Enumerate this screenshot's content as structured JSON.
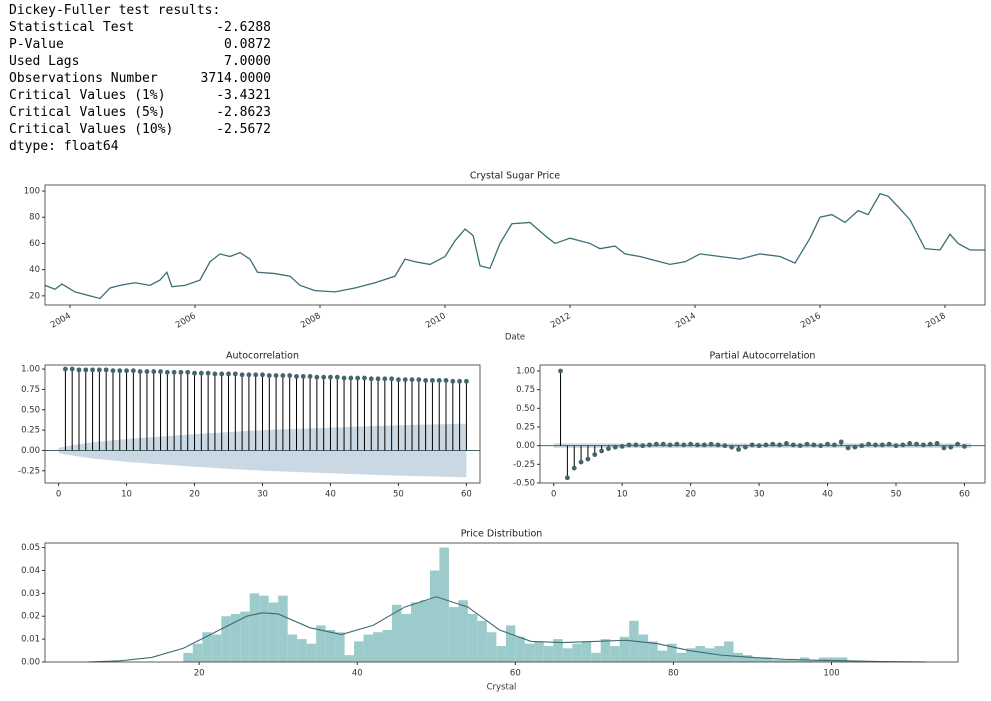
{
  "output": {
    "header": "Dickey-Fuller test results:",
    "rows": [
      [
        "Statistical Test",
        "-2.6288"
      ],
      [
        "P-Value",
        "0.0872"
      ],
      [
        "Used Lags",
        "7.0000"
      ],
      [
        "Observations Number",
        "3714.0000"
      ],
      [
        "Critical Values (1%)",
        "-3.4321"
      ],
      [
        "Critical Values (5%)",
        "-2.8623"
      ],
      [
        "Critical Values (10%)",
        "-2.5672"
      ]
    ],
    "footer": "dtype: float64"
  },
  "chart_data": [
    {
      "type": "line",
      "title": "Crystal Sugar Price",
      "xlabel": "Date",
      "color": "#3b6f76",
      "x": [
        2003.6,
        2003.76,
        2003.87,
        2004.08,
        2004.32,
        2004.48,
        2004.64,
        2004.8,
        2005.04,
        2005.28,
        2005.44,
        2005.55,
        2005.63,
        2005.84,
        2006.08,
        2006.24,
        2006.4,
        2006.56,
        2006.72,
        2006.88,
        2007.0,
        2007.28,
        2007.52,
        2007.68,
        2007.92,
        2008.24,
        2008.56,
        2008.88,
        2009.2,
        2009.36,
        2009.52,
        2009.76,
        2010.0,
        2010.16,
        2010.32,
        2010.45,
        2010.56,
        2010.72,
        2010.88,
        2011.07,
        2011.36,
        2011.6,
        2011.76,
        2012.0,
        2012.32,
        2012.48,
        2012.72,
        2012.88,
        2013.12,
        2013.36,
        2013.6,
        2013.84,
        2014.08,
        2014.4,
        2014.72,
        2015.04,
        2015.36,
        2015.6,
        2015.84,
        2016.0,
        2016.19,
        2016.4,
        2016.61,
        2016.77,
        2016.96,
        2017.09,
        2017.25,
        2017.44,
        2017.68,
        2017.92,
        2018.08,
        2018.21,
        2018.4,
        2018.64
      ],
      "values": [
        28,
        25,
        29,
        23,
        20,
        18,
        26,
        28,
        30,
        28,
        32,
        38,
        27,
        28,
        32,
        46,
        52,
        50,
        53,
        48,
        38,
        37,
        35,
        28,
        24,
        23,
        26,
        30,
        35,
        48,
        46,
        44,
        50,
        62,
        71,
        66,
        43,
        41,
        60,
        75,
        76,
        66,
        60,
        64,
        60,
        56,
        58,
        52,
        50,
        47,
        44,
        46,
        52,
        50,
        48,
        52,
        50,
        45,
        64,
        80,
        82,
        76,
        85,
        82,
        98,
        96,
        88,
        78,
        56,
        55,
        67,
        60,
        55,
        55
      ],
      "xlim": [
        2003.6,
        2018.64
      ],
      "ylim": [
        13,
        104.6
      ],
      "xticks": [
        2004,
        2006,
        2008,
        2010,
        2012,
        2014,
        2016,
        2018
      ],
      "yticks": [
        20,
        40,
        60,
        80,
        100
      ]
    },
    {
      "type": "stem",
      "title": "Autocorrelation",
      "color": "#44666a",
      "band_color": "#b4c8d8",
      "x": [
        1,
        2,
        3,
        4,
        5,
        6,
        7,
        8,
        9,
        10,
        11,
        12,
        13,
        14,
        15,
        16,
        17,
        18,
        19,
        20,
        21,
        22,
        23,
        24,
        25,
        26,
        27,
        28,
        29,
        30,
        31,
        32,
        33,
        34,
        35,
        36,
        37,
        38,
        39,
        40,
        41,
        42,
        43,
        44,
        45,
        46,
        47,
        48,
        49,
        50,
        51,
        52,
        53,
        54,
        55,
        56,
        57,
        58,
        59,
        60
      ],
      "values": [
        1.0,
        1.0,
        0.99,
        0.99,
        0.99,
        0.99,
        0.99,
        0.98,
        0.98,
        0.98,
        0.98,
        0.97,
        0.97,
        0.97,
        0.97,
        0.96,
        0.96,
        0.96,
        0.96,
        0.95,
        0.95,
        0.95,
        0.94,
        0.94,
        0.94,
        0.94,
        0.93,
        0.93,
        0.93,
        0.93,
        0.92,
        0.92,
        0.92,
        0.92,
        0.91,
        0.91,
        0.91,
        0.9,
        0.9,
        0.9,
        0.9,
        0.89,
        0.89,
        0.89,
        0.89,
        0.88,
        0.88,
        0.88,
        0.88,
        0.87,
        0.87,
        0.87,
        0.87,
        0.86,
        0.86,
        0.86,
        0.86,
        0.85,
        0.85,
        0.85
      ],
      "confidence_x": [
        0,
        1,
        5,
        10,
        20,
        30,
        40,
        50,
        60
      ],
      "confidence": [
        0.03,
        0.05,
        0.1,
        0.14,
        0.2,
        0.25,
        0.28,
        0.31,
        0.33
      ],
      "xlim": [
        -2,
        62
      ],
      "ylim": [
        -0.4,
        1.05
      ],
      "xticks": [
        0,
        10,
        20,
        30,
        40,
        50,
        60
      ],
      "yticks": [
        -0.25,
        {
          "value": 0,
          "label": "0.00"
        },
        0.25,
        {
          "value": 0.5,
          "label": "0.50"
        },
        0.75,
        {
          "value": 1,
          "label": "1.00"
        }
      ]
    },
    {
      "type": "stem",
      "title": "Partial Autocorrelation",
      "color": "#44666a",
      "band_color": "#b4c8d8",
      "x": [
        1,
        2,
        3,
        4,
        5,
        6,
        7,
        8,
        9,
        10,
        11,
        12,
        13,
        14,
        15,
        16,
        17,
        18,
        19,
        20,
        21,
        22,
        23,
        24,
        25,
        26,
        27,
        28,
        29,
        30,
        31,
        32,
        33,
        34,
        35,
        36,
        37,
        38,
        39,
        40,
        41,
        42,
        43,
        44,
        45,
        46,
        47,
        48,
        49,
        50,
        51,
        52,
        53,
        54,
        55,
        56,
        57,
        58,
        59,
        60
      ],
      "values": [
        1.0,
        -0.43,
        -0.3,
        -0.22,
        -0.18,
        -0.12,
        -0.07,
        -0.04,
        -0.02,
        -0.01,
        0.01,
        0.01,
        0.0,
        0.01,
        0.02,
        0.02,
        0.01,
        0.02,
        0.01,
        0.02,
        0.01,
        0.01,
        0.02,
        0.01,
        0.0,
        -0.02,
        -0.05,
        -0.02,
        0.01,
        0.0,
        0.01,
        0.02,
        0.01,
        0.03,
        0.01,
        0.0,
        0.02,
        0.01,
        0.0,
        0.02,
        0.01,
        0.05,
        -0.03,
        -0.02,
        0.0,
        0.02,
        0.01,
        0.01,
        0.02,
        0.0,
        0.01,
        0.03,
        0.02,
        0.01,
        0.02,
        0.03,
        -0.03,
        -0.02,
        0.02,
        -0.01
      ],
      "confidence_x": [
        0,
        61
      ],
      "confidence": [
        0.03,
        0.03
      ],
      "xlim": [
        -2,
        63
      ],
      "ylim": [
        -0.5,
        1.08
      ],
      "xticks": [
        0,
        10,
        20,
        30,
        40,
        50,
        60
      ],
      "yticks": [
        {
          "value": -0.5,
          "label": "-0.50"
        },
        -0.25,
        {
          "value": 0,
          "label": "0.00"
        },
        0.25,
        {
          "value": 0.5,
          "label": "0.50"
        },
        0.75,
        {
          "value": 1,
          "label": "1.00"
        }
      ]
    },
    {
      "type": "histogram",
      "title": "Price Distribution",
      "xlabel": "Crystal",
      "color": "#9ccbcb",
      "bins": [
        18,
        19.2,
        20.4,
        21.6,
        22.8,
        24,
        25.2,
        26.4,
        27.6,
        28.8,
        30,
        31.2,
        32.4,
        33.6,
        34.8,
        36,
        37.2,
        38.4,
        39.6,
        40.8,
        42,
        43.2,
        44.4,
        45.6,
        46.8,
        48,
        49.2,
        50.4,
        51.6,
        52.8,
        54,
        55.2,
        56.4,
        57.6,
        58.8,
        60,
        61.2,
        62.4,
        63.6,
        64.8,
        66,
        67.2,
        68.4,
        69.6,
        70.8,
        72,
        73.2,
        74.4,
        75.6,
        76.8,
        78,
        79.2,
        80.4,
        81.6,
        82.8,
        84,
        85.2,
        86.4,
        87.6,
        88.8,
        90,
        91.2,
        92.4,
        93.6,
        94.8,
        96,
        97.2,
        98.4,
        99.6,
        100.8,
        102
      ],
      "values": [
        0.004,
        0.008,
        0.013,
        0.012,
        0.02,
        0.021,
        0.022,
        0.03,
        0.029,
        0.026,
        0.029,
        0.012,
        0.01,
        0.008,
        0.016,
        0.014,
        0.013,
        0.003,
        0.009,
        0.012,
        0.013,
        0.014,
        0.025,
        0.021,
        0.026,
        0.027,
        0.04,
        0.05,
        0.024,
        0.027,
        0.021,
        0.018,
        0.013,
        0.007,
        0.016,
        0.011,
        0.008,
        0.009,
        0.007,
        0.01,
        0.006,
        0.008,
        0.009,
        0.004,
        0.01,
        0.007,
        0.011,
        0.018,
        0.012,
        0.009,
        0.005,
        0.008,
        0.004,
        0.006,
        0.007,
        0.006,
        0.007,
        0.009,
        0.004,
        0.003,
        0.002,
        0.002,
        0.001,
        0.001,
        0.001,
        0.002,
        0.001,
        0.002,
        0.002,
        0.002
      ],
      "kde": {
        "color": "#3d6b6e",
        "x": [
          6,
          10,
          14,
          18,
          22,
          26,
          28,
          30,
          34,
          38,
          42,
          46,
          50,
          54,
          58,
          62,
          66,
          70,
          74,
          78,
          82,
          86,
          90,
          94,
          98,
          102,
          106,
          110,
          112
        ],
        "values": [
          0,
          0.0005,
          0.002,
          0.006,
          0.013,
          0.02,
          0.0215,
          0.021,
          0.015,
          0.012,
          0.016,
          0.024,
          0.0285,
          0.024,
          0.014,
          0.009,
          0.0085,
          0.009,
          0.0095,
          0.008,
          0.005,
          0.003,
          0.002,
          0.0012,
          0.0008,
          0.0005,
          0.0002,
          0.0001,
          0
        ]
      },
      "xlim": [
        0.5,
        116
      ],
      "ylim": [
        0,
        0.052
      ],
      "xticks": [
        20,
        40,
        60,
        80,
        100
      ],
      "yticks": [
        {
          "value": 0,
          "label": "0.00"
        },
        0.01,
        0.02,
        0.03,
        0.04,
        0.05
      ]
    }
  ]
}
